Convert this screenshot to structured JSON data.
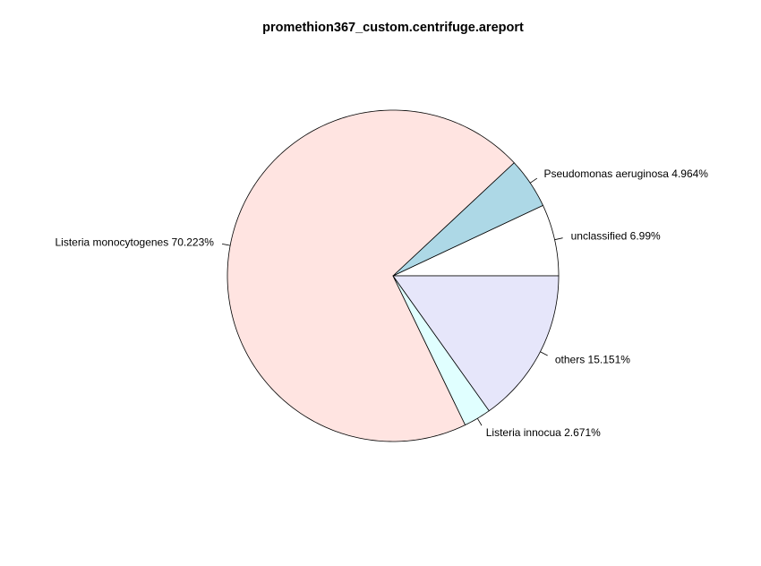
{
  "chart_data": {
    "type": "pie",
    "title": "promethion367_custom.centrifuge.areport",
    "direction": "counterclockwise",
    "start_angle_degrees": 0,
    "slices": [
      {
        "label": "unclassified 6.99%",
        "name": "unclassified",
        "value": 6.99,
        "color": "#ffffff"
      },
      {
        "label": "Pseudomonas aeruginosa 4.964%",
        "name": "Pseudomonas aeruginosa",
        "value": 4.964,
        "color": "#add8e6"
      },
      {
        "label": "Listeria monocytogenes 70.223%",
        "name": "Listeria monocytogenes",
        "value": 70.223,
        "color": "#ffe4e1"
      },
      {
        "label": "Listeria innocua 2.671%",
        "name": "Listeria innocua",
        "value": 2.671,
        "color": "#e0ffff"
      },
      {
        "label": "others 15.151%",
        "name": "others",
        "value": 15.151,
        "color": "#e6e6fa"
      }
    ]
  }
}
